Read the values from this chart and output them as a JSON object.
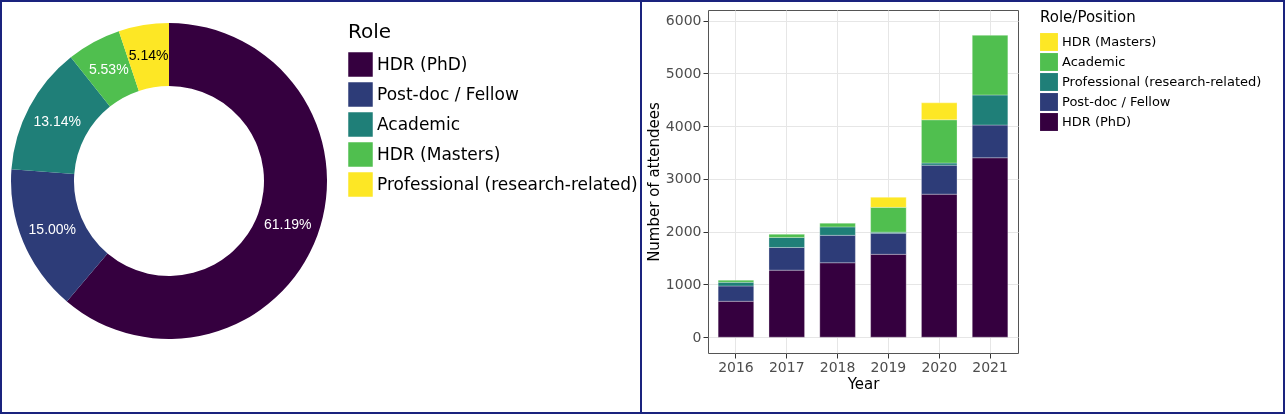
{
  "chart_data": [
    {
      "type": "donut",
      "legend_title": "Role",
      "legend": "right",
      "categories": [
        "HDR (PhD)",
        "Post-doc / Fellow",
        "Academic",
        "HDR (Masters)",
        "Professional (research-related)"
      ],
      "values": [
        61.19,
        15.0,
        13.14,
        5.53,
        5.14
      ],
      "value_labels": [
        "61.19%",
        "15.00%",
        "13.14%",
        "5.53%",
        "5.14%"
      ],
      "colors": [
        "#35003f",
        "#2d3c78",
        "#1f7f78",
        "#50bf4f",
        "#fde725"
      ]
    },
    {
      "type": "bar",
      "stacked": true,
      "xlabel": "Year",
      "ylabel": "Number of attendees",
      "legend_title": "Role/Position",
      "legend": "right",
      "grid": true,
      "categories": [
        "2016",
        "2017",
        "2018",
        "2019",
        "2020",
        "2021"
      ],
      "ylim": [
        -300,
        6200
      ],
      "yticks": [
        0,
        1000,
        2000,
        3000,
        4000,
        5000,
        6000
      ],
      "series": [
        {
          "name": "HDR (PhD)",
          "color": "#35003f",
          "values": [
            680,
            1270,
            1410,
            1570,
            2710,
            3400
          ]
        },
        {
          "name": "Post-doc / Fellow",
          "color": "#2d3c78",
          "values": [
            290,
            430,
            520,
            400,
            550,
            620
          ]
        },
        {
          "name": "Professional (research-related)",
          "color": "#1f7f78",
          "values": [
            70,
            190,
            160,
            20,
            40,
            570
          ]
        },
        {
          "name": "Academic",
          "color": "#50bf4f",
          "values": [
            40,
            60,
            70,
            470,
            820,
            1130
          ]
        },
        {
          "name": "HDR (Masters)",
          "color": "#fde725",
          "values": [
            null,
            null,
            null,
            190,
            320,
            null
          ]
        }
      ]
    }
  ]
}
